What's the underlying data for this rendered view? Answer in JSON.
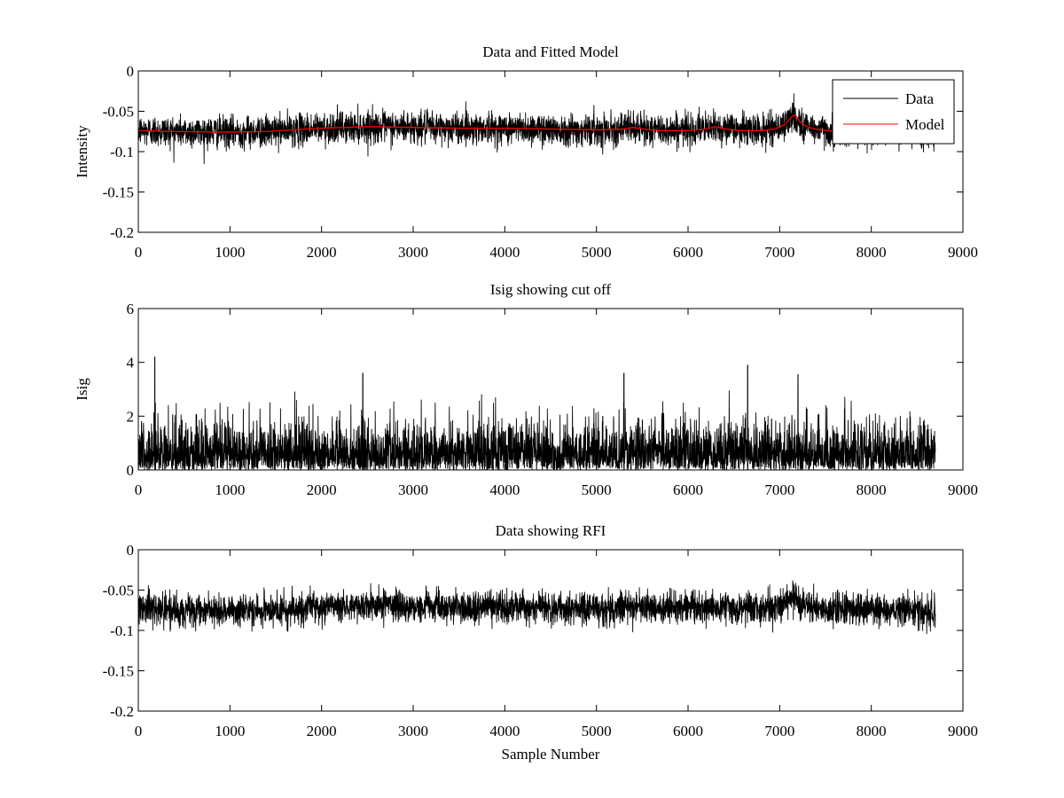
{
  "figure": {
    "background": "#ffffff"
  },
  "chart_data": [
    {
      "type": "line",
      "title": "Data and Fitted Model",
      "xlabel": "",
      "ylabel": "Intensity",
      "xlim": [
        0,
        9000
      ],
      "ylim": [
        -0.2,
        0
      ],
      "xticks": [
        "0",
        "1000",
        "2000",
        "3000",
        "4000",
        "5000",
        "6000",
        "7000",
        "8000",
        "9000"
      ],
      "yticks": [
        "-0.2",
        "-0.15",
        "-0.1",
        "-0.05",
        "0"
      ],
      "grid": false,
      "legend": {
        "position": "top-right",
        "entries": [
          "Data",
          "Model"
        ]
      },
      "series": [
        {
          "name": "Data",
          "color": "#000000",
          "x_range": [
            0,
            8700
          ],
          "points": 8700,
          "noise_std": 0.0095,
          "baseline": {
            "x": [
              0,
              400,
              900,
              1400,
              2000,
              2500,
              3000,
              4000,
              5000,
              5400,
              5600,
              6200,
              6300,
              6800,
              7050,
              7150,
              7250,
              7400,
              7600,
              8000,
              8700
            ],
            "y": [
              -0.074,
              -0.075,
              -0.076,
              -0.075,
              -0.071,
              -0.069,
              -0.07,
              -0.071,
              -0.073,
              -0.071,
              -0.073,
              -0.072,
              -0.07,
              -0.074,
              -0.068,
              -0.055,
              -0.068,
              -0.072,
              -0.075,
              -0.074,
              -0.075
            ]
          },
          "extremes": {
            "max": -0.025,
            "min": -0.115
          }
        },
        {
          "name": "Model",
          "color": "#ff0000",
          "x": [
            0,
            400,
            900,
            1400,
            2000,
            2500,
            3000,
            3500,
            4000,
            4500,
            5000,
            5300,
            5400,
            5500,
            5700,
            6000,
            6200,
            6300,
            6400,
            6600,
            6800,
            6950,
            7050,
            7100,
            7150,
            7180,
            7220,
            7280,
            7350,
            7450,
            7600
          ],
          "y": [
            -0.074,
            -0.075,
            -0.076,
            -0.075,
            -0.071,
            -0.069,
            -0.07,
            -0.071,
            -0.071,
            -0.072,
            -0.073,
            -0.072,
            -0.07,
            -0.072,
            -0.074,
            -0.074,
            -0.072,
            -0.069,
            -0.072,
            -0.074,
            -0.074,
            -0.072,
            -0.067,
            -0.061,
            -0.055,
            -0.056,
            -0.063,
            -0.068,
            -0.071,
            -0.073,
            -0.075
          ]
        }
      ]
    },
    {
      "type": "line",
      "title": "Isig showing cut off",
      "xlabel": "",
      "ylabel": "Isig",
      "xlim": [
        0,
        9000
      ],
      "ylim": [
        0,
        6
      ],
      "xticks": [
        "0",
        "1000",
        "2000",
        "3000",
        "4000",
        "5000",
        "6000",
        "7000",
        "8000",
        "9000"
      ],
      "yticks": [
        "0",
        "2",
        "4",
        "6"
      ],
      "grid": false,
      "series": [
        {
          "color": "#000000",
          "x_range": [
            0,
            8700
          ],
          "points": 8700,
          "typical_range": [
            0,
            2
          ],
          "distribution": "half-normal",
          "peaks": [
            {
              "x": 180,
              "y": 4.2
            },
            {
              "x": 6650,
              "y": 3.9
            },
            {
              "x": 5300,
              "y": 3.6
            },
            {
              "x": 2450,
              "y": 3.6
            },
            {
              "x": 7200,
              "y": 3.55
            }
          ]
        }
      ]
    },
    {
      "type": "line",
      "title": "Data showing RFI",
      "xlabel": "Sample Number",
      "ylabel": "",
      "xlim": [
        0,
        9000
      ],
      "ylim": [
        -0.2,
        0
      ],
      "xticks": [
        "0",
        "1000",
        "2000",
        "3000",
        "4000",
        "5000",
        "6000",
        "7000",
        "8000",
        "9000"
      ],
      "yticks": [
        "-0.2",
        "-0.15",
        "-0.1",
        "-0.05",
        "0"
      ],
      "grid": false,
      "series": [
        {
          "color": "#000000",
          "x_range": [
            0,
            8700
          ],
          "points": 8700,
          "noise_std": 0.0095,
          "baseline": {
            "x": [
              0,
              400,
              900,
              1400,
              2000,
              2500,
              3000,
              4000,
              5000,
              5400,
              5600,
              6200,
              6300,
              6800,
              7050,
              7150,
              7250,
              7400,
              7600,
              8000,
              8700
            ],
            "y": [
              -0.074,
              -0.075,
              -0.076,
              -0.075,
              -0.071,
              -0.069,
              -0.07,
              -0.071,
              -0.073,
              -0.071,
              -0.073,
              -0.072,
              -0.07,
              -0.074,
              -0.068,
              -0.055,
              -0.068,
              -0.072,
              -0.075,
              -0.074,
              -0.075
            ]
          },
          "extremes": {
            "max": -0.025,
            "min": -0.115
          }
        }
      ]
    }
  ]
}
